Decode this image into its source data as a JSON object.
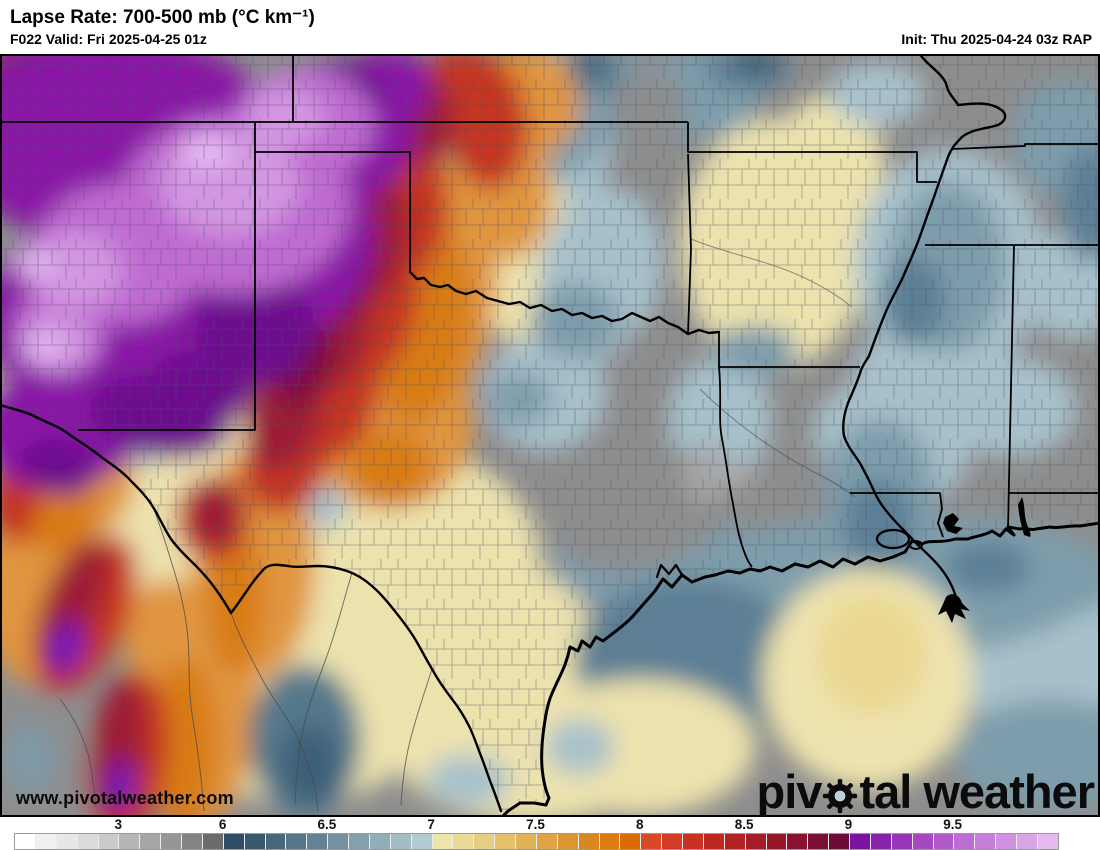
{
  "header": {
    "title": "Lapse Rate: 700-500 mb (°C km⁻¹)",
    "valid": "F022 Valid: Fri 2025-04-25 01z",
    "init": "Init: Thu 2025-04-24 03z RAP"
  },
  "watermarks": {
    "url": "www.pivotalweather.com",
    "logo_prefix": "piv",
    "logo_suffix": "tal weather"
  },
  "colorbar": {
    "units": "°C km⁻¹",
    "range_min": 0,
    "range_max": 10,
    "ticks": [
      {
        "label": "3",
        "pos": 10
      },
      {
        "label": "6",
        "pos": 20
      },
      {
        "label": "6.5",
        "pos": 30
      },
      {
        "label": "7",
        "pos": 40
      },
      {
        "label": "7.5",
        "pos": 50
      },
      {
        "label": "8",
        "pos": 60
      },
      {
        "label": "8.5",
        "pos": 70
      },
      {
        "label": "9",
        "pos": 80
      },
      {
        "label": "9.5",
        "pos": 90
      }
    ],
    "cells": [
      "#ffffff",
      "#f1f1f1",
      "#e7e7e7",
      "#dbdbdb",
      "#cacaca",
      "#b6b6b6",
      "#a6a6a6",
      "#969696",
      "#848484",
      "#6b6b6b",
      "#2d4c66",
      "#395971",
      "#47677d",
      "#55758a",
      "#638295",
      "#7391a1",
      "#83a0ad",
      "#93aeb9",
      "#a3bdc6",
      "#b3cbd3",
      "#ece6ab",
      "#e9da96",
      "#e7cd81",
      "#e5c06d",
      "#e2b259",
      "#dfa445",
      "#dc9632",
      "#d98820",
      "#db7b10",
      "#d96c06",
      "#d84a25",
      "#d13c22",
      "#c73121",
      "#bc2921",
      "#b02222",
      "#a31c26",
      "#96172a",
      "#89122e",
      "#7c0e32",
      "#700b36",
      "#7b12a1",
      "#8a23ac",
      "#9935b8",
      "#a747c2",
      "#b259ca",
      "#bc6cd2",
      "#c67fd9",
      "#d092e0",
      "#daa5e8",
      "#e4b9ef"
    ]
  }
}
